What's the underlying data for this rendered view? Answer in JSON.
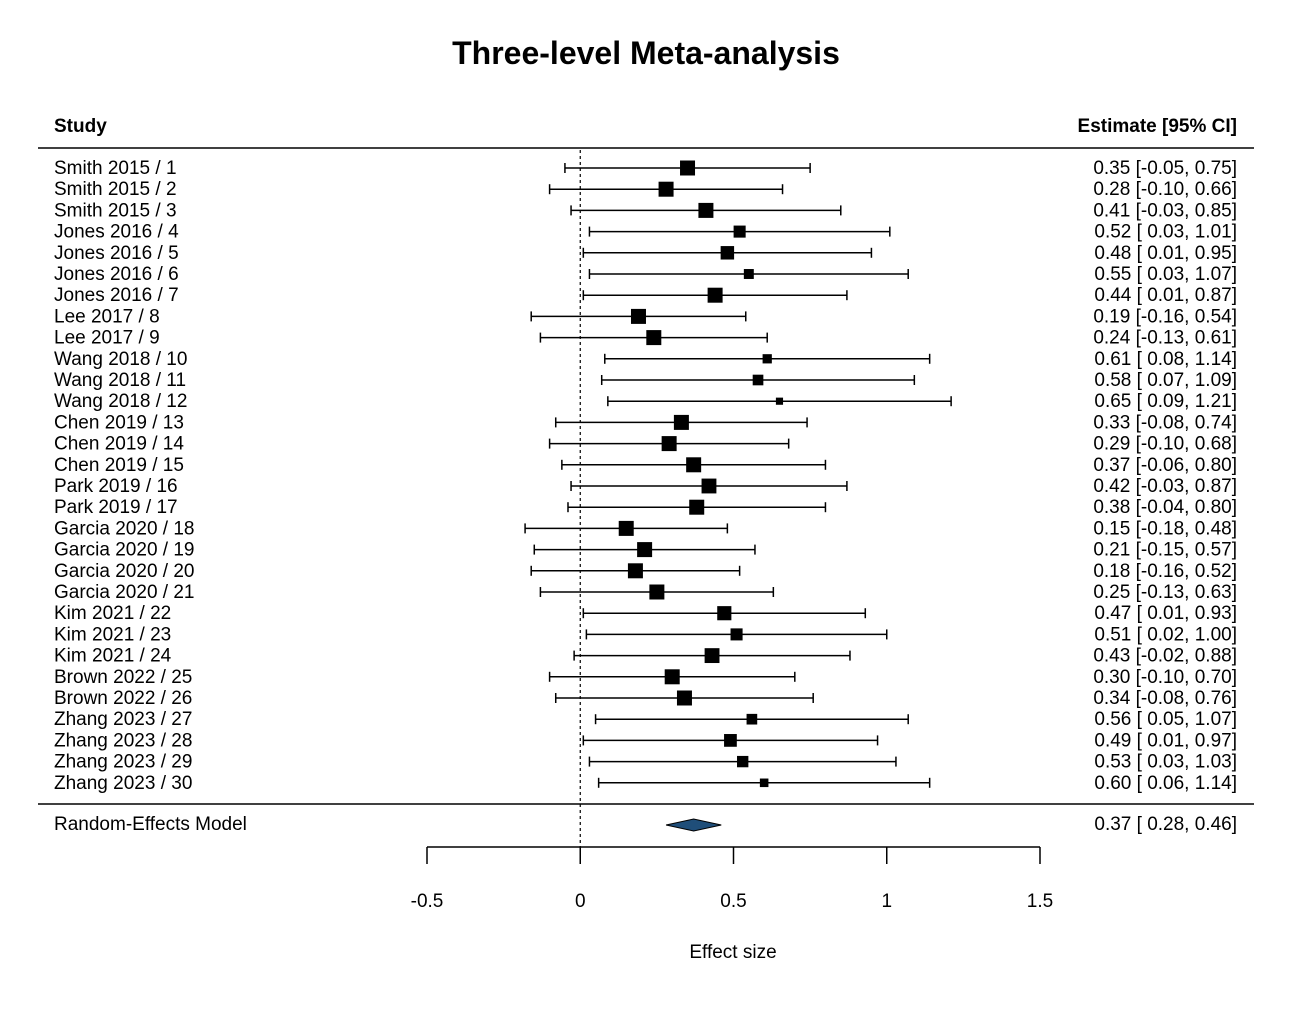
{
  "chart_data": {
    "type": "forest",
    "title": "Three-level Meta-analysis",
    "study_header": "Study",
    "estimate_header": "Estimate [95% CI]",
    "xlabel": "Effect size",
    "xlim": [
      -0.5,
      1.5
    ],
    "xticks": [
      -0.5,
      0,
      0.5,
      1,
      1.5
    ],
    "xtick_labels": [
      "-0.5",
      "0",
      "0.5",
      "1",
      "1.5"
    ],
    "reference_line": 0,
    "studies": [
      {
        "label": "Smith 2015 / 1",
        "est": 0.35,
        "lo": -0.05,
        "hi": 0.75,
        "ci_text": "0.35 [-0.05, 0.75]"
      },
      {
        "label": "Smith 2015 / 2",
        "est": 0.28,
        "lo": -0.1,
        "hi": 0.66,
        "ci_text": "0.28 [-0.10, 0.66]"
      },
      {
        "label": "Smith 2015 / 3",
        "est": 0.41,
        "lo": -0.03,
        "hi": 0.85,
        "ci_text": "0.41 [-0.03, 0.85]"
      },
      {
        "label": "Jones 2016 / 4",
        "est": 0.52,
        "lo": 0.03,
        "hi": 1.01,
        "ci_text": "0.52 [ 0.03, 1.01]"
      },
      {
        "label": "Jones 2016 / 5",
        "est": 0.48,
        "lo": 0.01,
        "hi": 0.95,
        "ci_text": "0.48 [ 0.01, 0.95]"
      },
      {
        "label": "Jones 2016 / 6",
        "est": 0.55,
        "lo": 0.03,
        "hi": 1.07,
        "ci_text": "0.55 [ 0.03, 1.07]"
      },
      {
        "label": "Jones 2016 / 7",
        "est": 0.44,
        "lo": 0.01,
        "hi": 0.87,
        "ci_text": "0.44 [ 0.01, 0.87]"
      },
      {
        "label": "Lee 2017 / 8",
        "est": 0.19,
        "lo": -0.16,
        "hi": 0.54,
        "ci_text": "0.19 [-0.16, 0.54]"
      },
      {
        "label": "Lee 2017 / 9",
        "est": 0.24,
        "lo": -0.13,
        "hi": 0.61,
        "ci_text": "0.24 [-0.13, 0.61]"
      },
      {
        "label": "Wang 2018 / 10",
        "est": 0.61,
        "lo": 0.08,
        "hi": 1.14,
        "ci_text": "0.61 [ 0.08, 1.14]"
      },
      {
        "label": "Wang 2018 / 11",
        "est": 0.58,
        "lo": 0.07,
        "hi": 1.09,
        "ci_text": "0.58 [ 0.07, 1.09]"
      },
      {
        "label": "Wang 2018 / 12",
        "est": 0.65,
        "lo": 0.09,
        "hi": 1.21,
        "ci_text": "0.65 [ 0.09, 1.21]"
      },
      {
        "label": "Chen 2019 / 13",
        "est": 0.33,
        "lo": -0.08,
        "hi": 0.74,
        "ci_text": "0.33 [-0.08, 0.74]"
      },
      {
        "label": "Chen 2019 / 14",
        "est": 0.29,
        "lo": -0.1,
        "hi": 0.68,
        "ci_text": "0.29 [-0.10, 0.68]"
      },
      {
        "label": "Chen 2019 / 15",
        "est": 0.37,
        "lo": -0.06,
        "hi": 0.8,
        "ci_text": "0.37 [-0.06, 0.80]"
      },
      {
        "label": "Park 2019 / 16",
        "est": 0.42,
        "lo": -0.03,
        "hi": 0.87,
        "ci_text": "0.42 [-0.03, 0.87]"
      },
      {
        "label": "Park 2019 / 17",
        "est": 0.38,
        "lo": -0.04,
        "hi": 0.8,
        "ci_text": "0.38 [-0.04, 0.80]"
      },
      {
        "label": "Garcia 2020 / 18",
        "est": 0.15,
        "lo": -0.18,
        "hi": 0.48,
        "ci_text": "0.15 [-0.18, 0.48]"
      },
      {
        "label": "Garcia 2020 / 19",
        "est": 0.21,
        "lo": -0.15,
        "hi": 0.57,
        "ci_text": "0.21 [-0.15, 0.57]"
      },
      {
        "label": "Garcia 2020 / 20",
        "est": 0.18,
        "lo": -0.16,
        "hi": 0.52,
        "ci_text": "0.18 [-0.16, 0.52]"
      },
      {
        "label": "Garcia 2020 / 21",
        "est": 0.25,
        "lo": -0.13,
        "hi": 0.63,
        "ci_text": "0.25 [-0.13, 0.63]"
      },
      {
        "label": "Kim 2021 / 22",
        "est": 0.47,
        "lo": 0.01,
        "hi": 0.93,
        "ci_text": "0.47 [ 0.01, 0.93]"
      },
      {
        "label": "Kim 2021 / 23",
        "est": 0.51,
        "lo": 0.02,
        "hi": 1.0,
        "ci_text": "0.51 [ 0.02, 1.00]"
      },
      {
        "label": "Kim 2021 / 24",
        "est": 0.43,
        "lo": -0.02,
        "hi": 0.88,
        "ci_text": "0.43 [-0.02, 0.88]"
      },
      {
        "label": "Brown 2022 / 25",
        "est": 0.3,
        "lo": -0.1,
        "hi": 0.7,
        "ci_text": "0.30 [-0.10, 0.70]"
      },
      {
        "label": "Brown 2022 / 26",
        "est": 0.34,
        "lo": -0.08,
        "hi": 0.76,
        "ci_text": "0.34 [-0.08, 0.76]"
      },
      {
        "label": "Zhang 2023 / 27",
        "est": 0.56,
        "lo": 0.05,
        "hi": 1.07,
        "ci_text": "0.56 [ 0.05, 1.07]"
      },
      {
        "label": "Zhang 2023 / 28",
        "est": 0.49,
        "lo": 0.01,
        "hi": 0.97,
        "ci_text": "0.49 [ 0.01, 0.97]"
      },
      {
        "label": "Zhang 2023 / 29",
        "est": 0.53,
        "lo": 0.03,
        "hi": 1.03,
        "ci_text": "0.53 [ 0.03, 1.03]"
      },
      {
        "label": "Zhang 2023 / 30",
        "est": 0.6,
        "lo": 0.06,
        "hi": 1.14,
        "ci_text": "0.60 [ 0.06, 1.14]"
      }
    ],
    "summary": {
      "label": "Random-Effects Model",
      "est": 0.37,
      "lo": 0.28,
      "hi": 0.46,
      "ci_text": "0.37 [ 0.28, 0.46]"
    },
    "colors": {
      "marker": "#000000",
      "summary_fill": "#1f4e79",
      "summary_stroke": "#000000"
    }
  }
}
